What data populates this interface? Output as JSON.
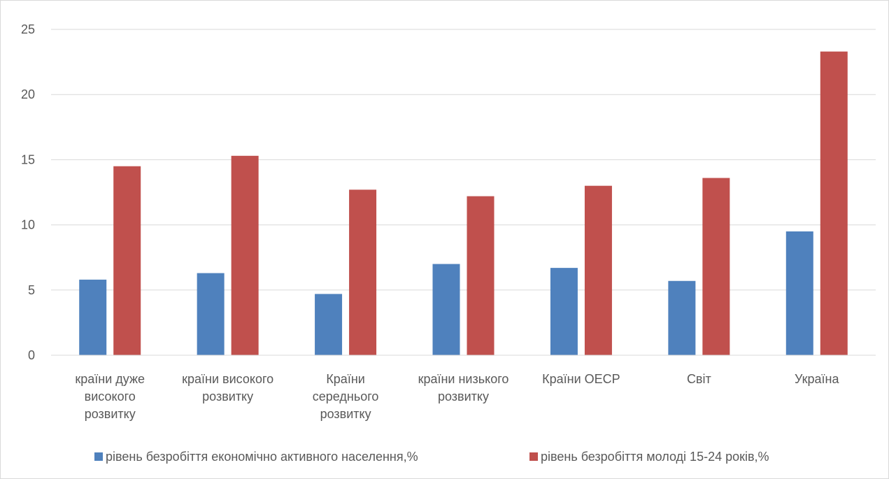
{
  "chart_data": {
    "type": "bar",
    "title": "",
    "xlabel": "",
    "ylabel": "",
    "ylim": [
      0,
      25
    ],
    "yticks": [
      0,
      5,
      10,
      15,
      20,
      25
    ],
    "grid": true,
    "legend_position": "bottom",
    "categories": [
      [
        "країни дуже",
        "високого",
        "розвитку"
      ],
      [
        "країни високого",
        "розвитку"
      ],
      [
        "Країни",
        "середнього",
        "розвитку"
      ],
      [
        "країни низького",
        "розвитку"
      ],
      [
        "Країни ОЕСР"
      ],
      [
        "Світ"
      ],
      [
        "Україна"
      ]
    ],
    "series": [
      {
        "name": "рівень безробіття економічно активного населення,%",
        "color": "#4f81bd",
        "values": [
          5.8,
          6.3,
          4.7,
          7.0,
          6.7,
          5.7,
          9.5
        ]
      },
      {
        "name": "рівень безробіття молоді 15-24 років,%",
        "color": "#c0504d",
        "values": [
          14.5,
          15.3,
          12.7,
          12.2,
          13.0,
          13.6,
          23.3
        ]
      }
    ]
  }
}
